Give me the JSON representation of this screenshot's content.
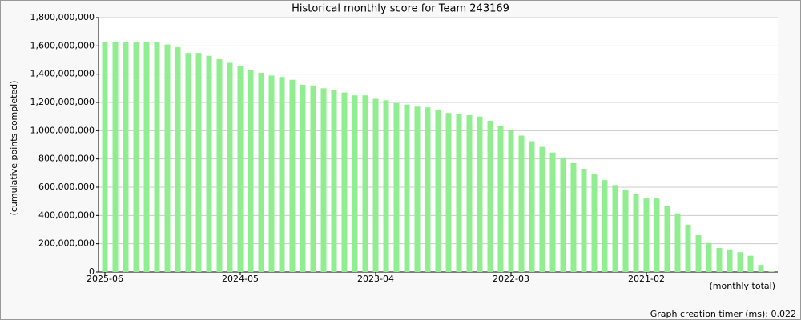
{
  "chart_data": {
    "type": "bar",
    "title": "Historical monthly score for Team 243169",
    "y_label": "(cumulative points completed)",
    "x_label": "(monthly total)",
    "footer": "Graph creation timer (ms): 0.022",
    "color": "#90ee90",
    "grid": true,
    "ylim": [
      0,
      1800000000
    ],
    "yticks": [
      0,
      {
        "value": 200000000,
        "label": "200,000,000"
      },
      {
        "value": 400000000,
        "label": "400,000,000"
      },
      {
        "value": 600000000,
        "label": "600,000,000"
      },
      {
        "value": 800000000,
        "label": "800,000,000"
      },
      {
        "value": 1000000000,
        "label": "1,000,000,000"
      },
      {
        "value": 1200000000,
        "label": "1,200,000,000"
      },
      {
        "value": 1400000000,
        "label": "1,400,000,000"
      },
      {
        "value": 1600000000,
        "label": "1,600,000,000"
      },
      {
        "value": 1800000000,
        "label": "1,800,000,000"
      }
    ],
    "categories": [
      "2025-06",
      null,
      null,
      null,
      null,
      null,
      null,
      null,
      null,
      null,
      null,
      null,
      null,
      "2024-05",
      null,
      null,
      null,
      null,
      null,
      null,
      null,
      null,
      null,
      null,
      null,
      null,
      "2023-04",
      null,
      null,
      null,
      null,
      null,
      null,
      null,
      null,
      null,
      null,
      null,
      null,
      "2022-03",
      null,
      null,
      null,
      null,
      null,
      null,
      null,
      null,
      null,
      null,
      null,
      null,
      "2021-02",
      null,
      null,
      null,
      null,
      null,
      null,
      null,
      null,
      null,
      null,
      null,
      null
    ],
    "values": [
      1625000000,
      1625000000,
      1625000000,
      1625000000,
      1625000000,
      1625000000,
      1610000000,
      1590000000,
      1550000000,
      1550000000,
      1530000000,
      1505000000,
      1480000000,
      1455000000,
      1430000000,
      1410000000,
      1390000000,
      1380000000,
      1360000000,
      1325000000,
      1320000000,
      1300000000,
      1290000000,
      1270000000,
      1250000000,
      1250000000,
      1225000000,
      1215000000,
      1195000000,
      1185000000,
      1170000000,
      1165000000,
      1145000000,
      1125000000,
      1115000000,
      1110000000,
      1100000000,
      1070000000,
      1035000000,
      1005000000,
      965000000,
      925000000,
      885000000,
      845000000,
      810000000,
      770000000,
      730000000,
      690000000,
      650000000,
      615000000,
      580000000,
      550000000,
      520000000,
      520000000,
      465000000,
      415000000,
      335000000,
      260000000,
      205000000,
      170000000,
      160000000,
      140000000,
      115000000,
      50000000,
      5000000
    ]
  }
}
